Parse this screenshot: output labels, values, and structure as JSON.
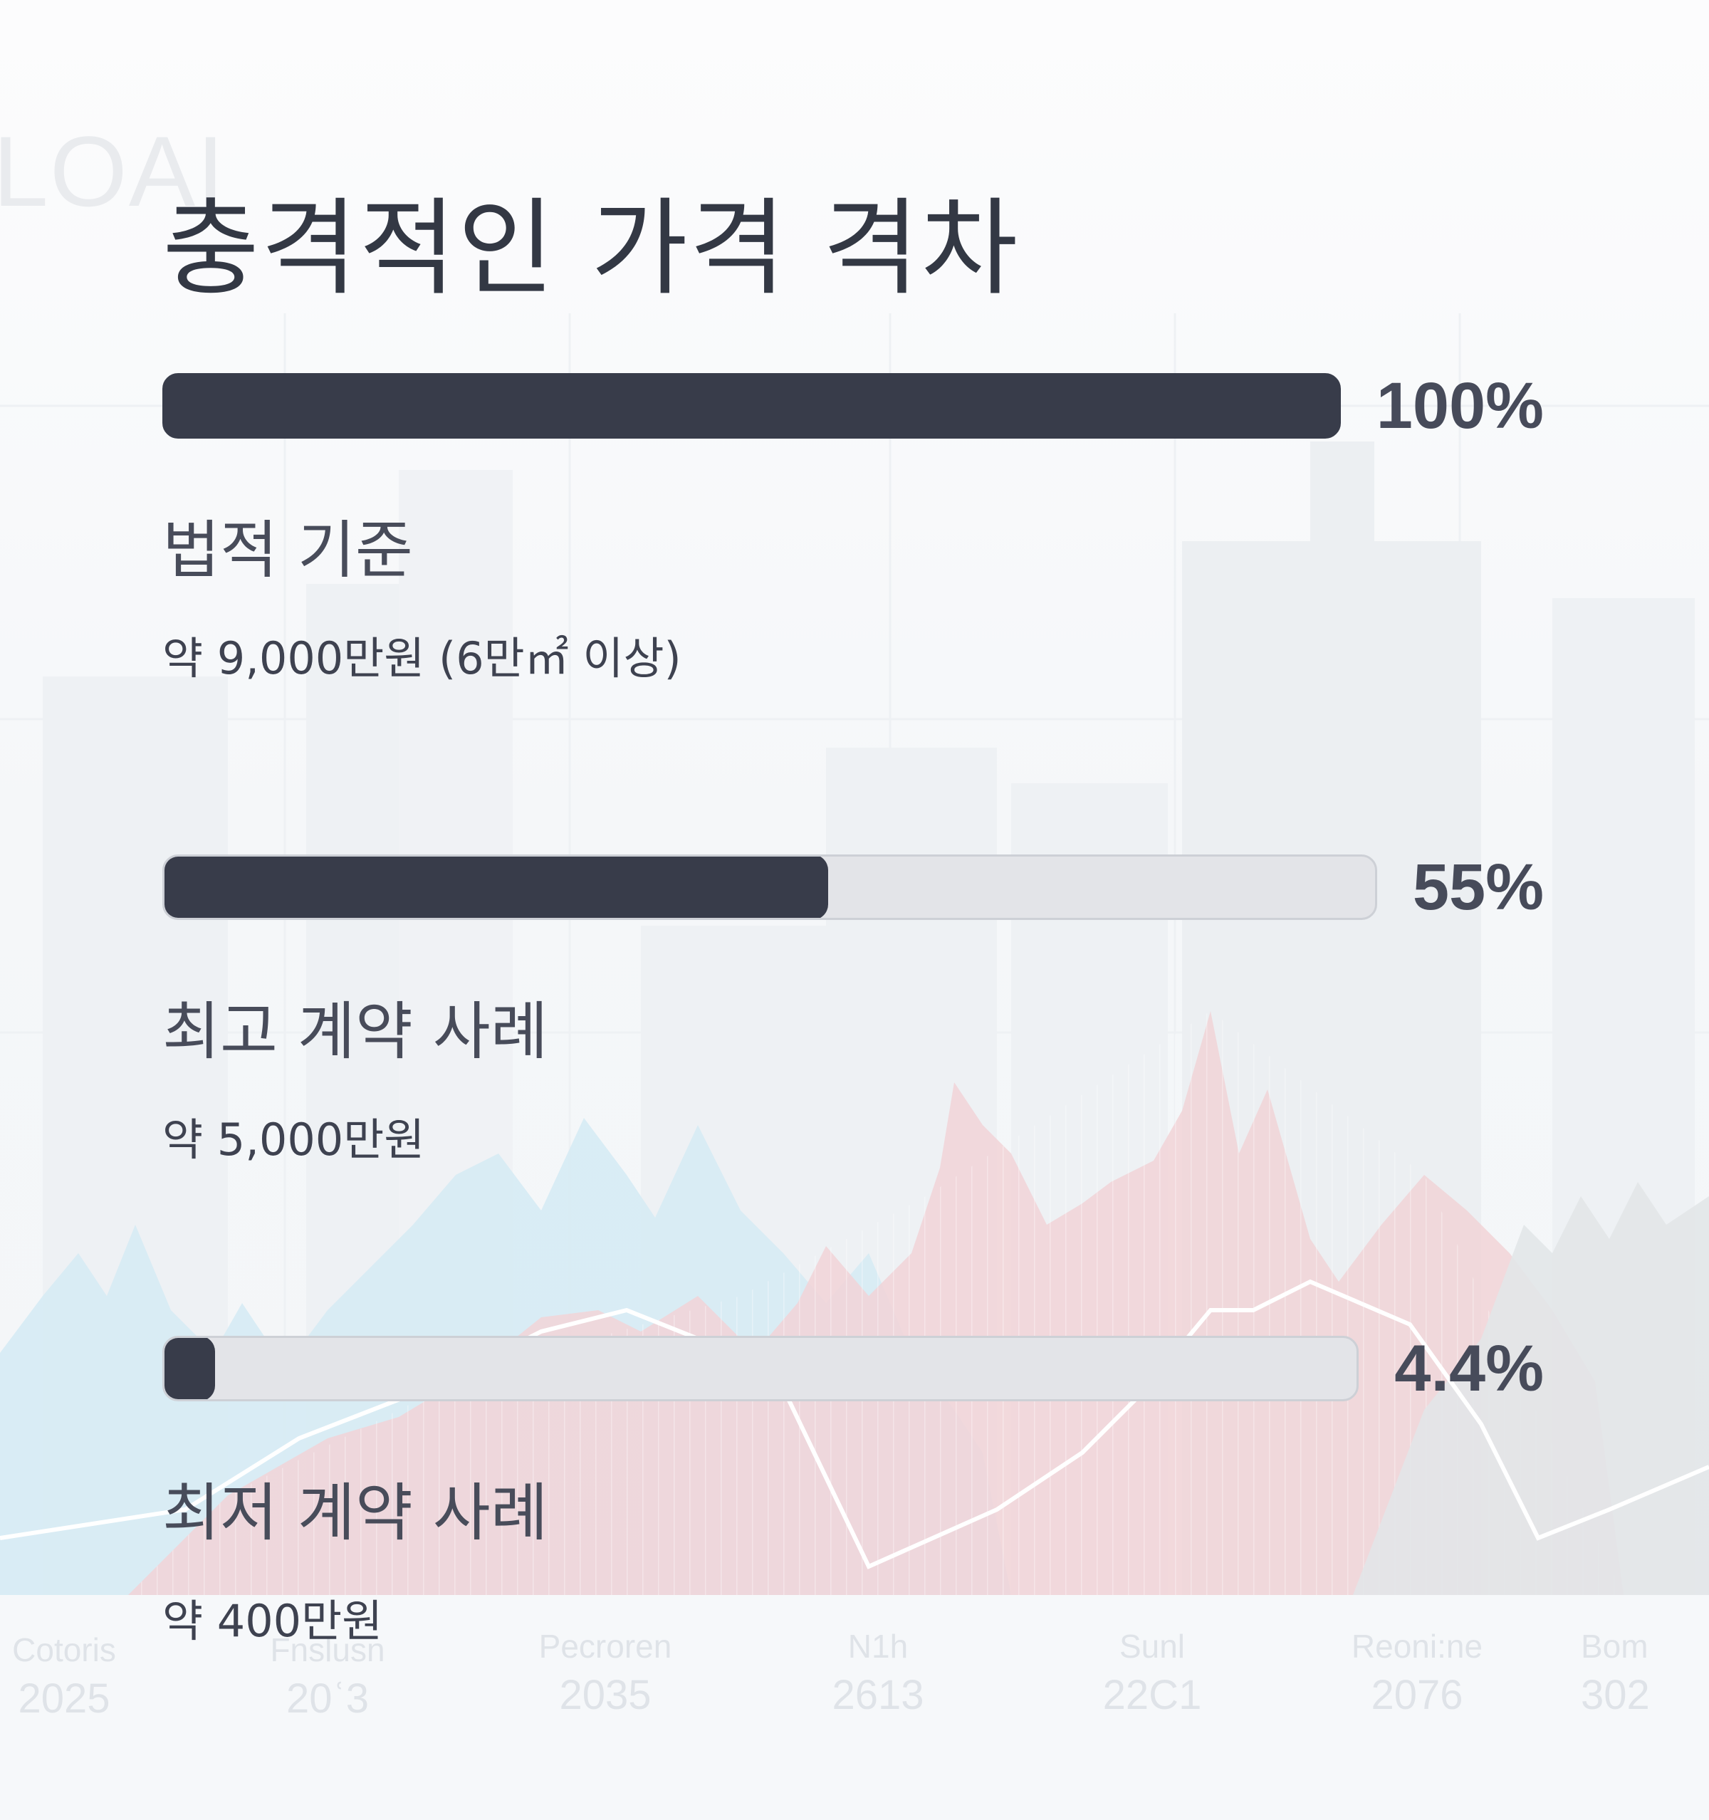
{
  "background": {
    "watermark": "LOAI",
    "axis_labels": [
      {
        "name": "Cotoris",
        "year": "2025"
      },
      {
        "name": "Fnslusn",
        "year": "20ʿ3"
      },
      {
        "name": "Pecroren",
        "year": "2035"
      },
      {
        "name": "N1h",
        "year": "2613"
      },
      {
        "name": "Sunl",
        "year": "22Ϲ1"
      },
      {
        "name": "Reoni:ne",
        "year": "2076"
      },
      {
        "name": "Bom",
        "year": "302"
      }
    ]
  },
  "chart_data": {
    "type": "bar",
    "orientation": "horizontal",
    "title": "충격적인 가격 격차",
    "unit": "%",
    "xlim": [
      0,
      100
    ],
    "categories": [
      "법적 기준",
      "최고 계약 사례",
      "최저 계약 사례"
    ],
    "values": [
      100,
      55,
      4.4
    ],
    "value_labels": [
      "100%",
      "55%",
      "4.4%"
    ],
    "descriptions": [
      "약 9,000만원 (6만㎡ 이상)",
      "약 5,000만원",
      "약 400만원"
    ],
    "colors": {
      "bar_fill": "#383c4a",
      "bar_track": "#e3e4e8",
      "track_border": "#cdd0d6",
      "text_dark": "#333844"
    }
  }
}
